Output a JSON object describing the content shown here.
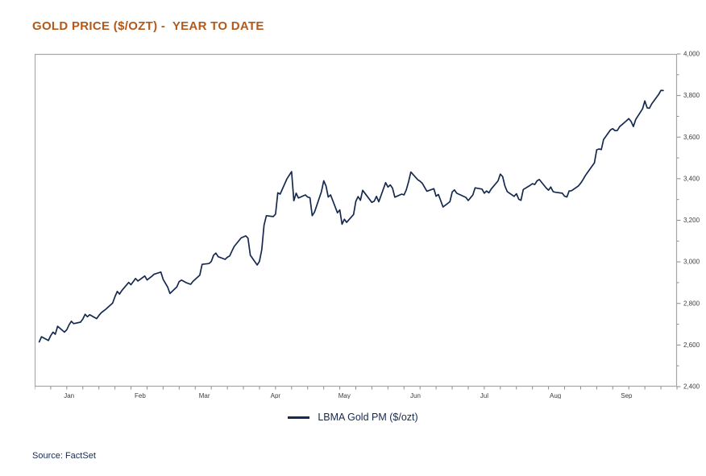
{
  "header": {
    "title": "GOLD PRICE ($/OZT) -  YEAR TO DATE"
  },
  "legend": {
    "label": "LBMA Gold PM ($/ozt)",
    "line_color": "#16294F"
  },
  "footer": {
    "source": "Source: FactSet"
  },
  "colors": {
    "title": "#B2591B",
    "line": "#16294F",
    "frame": "#A6A6A6",
    "tick": "#8A8A8A",
    "tick_label": "#3D3D3D",
    "navy_text": "#16294F",
    "background": "#FFFFFF"
  },
  "chart_data": {
    "type": "line",
    "title": "GOLD PRICE ($/OZT) - YEAR TO DATE",
    "xlabel": "",
    "ylabel": "",
    "grid": false,
    "axis_side": "right",
    "legend_position": "bottom-center",
    "x_unit": "day_of_year_2025",
    "x_domain": [
      0,
      280
    ],
    "y_domain": [
      2400,
      4000
    ],
    "y_minor_step": 100,
    "x_minor_tick_every_days": 7,
    "y_ticks_major": [
      {
        "value": 4000,
        "label": "4,000"
      },
      {
        "value": 3800,
        "label": "3,800"
      },
      {
        "value": 3600,
        "label": "3,600"
      },
      {
        "value": 3400,
        "label": "3,400"
      },
      {
        "value": 3200,
        "label": "3,200"
      },
      {
        "value": 3000,
        "label": "3,000"
      },
      {
        "value": 2800,
        "label": "2,800"
      },
      {
        "value": 2600,
        "label": "2,600"
      },
      {
        "value": 2400,
        "label": "2,400"
      }
    ],
    "x_month_labels": [
      {
        "label": "Jan",
        "day": 15
      },
      {
        "label": "Feb",
        "day": 46
      },
      {
        "label": "Mar",
        "day": 74
      },
      {
        "label": "Apr",
        "day": 105
      },
      {
        "label": "May",
        "day": 135
      },
      {
        "label": "Jun",
        "day": 166
      },
      {
        "label": "Jul",
        "day": 196
      },
      {
        "label": "Aug",
        "day": 227
      },
      {
        "label": "Sep",
        "day": 258
      }
    ],
    "series": [
      {
        "name": "LBMA Gold PM ($/ozt)",
        "color": "#16294F",
        "points": [
          [
            2,
            2615
          ],
          [
            3,
            2640
          ],
          [
            6,
            2622
          ],
          [
            7,
            2645
          ],
          [
            8,
            2662
          ],
          [
            9,
            2652
          ],
          [
            10,
            2690
          ],
          [
            13,
            2662
          ],
          [
            14,
            2674
          ],
          [
            15,
            2697
          ],
          [
            16,
            2714
          ],
          [
            17,
            2703
          ],
          [
            20,
            2710
          ],
          [
            21,
            2725
          ],
          [
            22,
            2748
          ],
          [
            23,
            2736
          ],
          [
            24,
            2746
          ],
          [
            27,
            2727
          ],
          [
            28,
            2742
          ],
          [
            29,
            2755
          ],
          [
            31,
            2772
          ],
          [
            34,
            2802
          ],
          [
            35,
            2832
          ],
          [
            36,
            2858
          ],
          [
            37,
            2845
          ],
          [
            38,
            2862
          ],
          [
            41,
            2901
          ],
          [
            42,
            2890
          ],
          [
            44,
            2920
          ],
          [
            45,
            2908
          ],
          [
            48,
            2932
          ],
          [
            49,
            2913
          ],
          [
            51,
            2930
          ],
          [
            52,
            2940
          ],
          [
            55,
            2951
          ],
          [
            56,
            2916
          ],
          [
            58,
            2878
          ],
          [
            59,
            2848
          ],
          [
            62,
            2880
          ],
          [
            63,
            2905
          ],
          [
            64,
            2912
          ],
          [
            66,
            2900
          ],
          [
            68,
            2892
          ],
          [
            69,
            2906
          ],
          [
            70,
            2916
          ],
          [
            72,
            2936
          ],
          [
            73,
            2988
          ],
          [
            76,
            2992
          ],
          [
            77,
            3002
          ],
          [
            78,
            3032
          ],
          [
            79,
            3042
          ],
          [
            80,
            3025
          ],
          [
            83,
            3012
          ],
          [
            84,
            3022
          ],
          [
            85,
            3028
          ],
          [
            86,
            3052
          ],
          [
            87,
            3074
          ],
          [
            90,
            3115
          ],
          [
            92,
            3125
          ],
          [
            93,
            3114
          ],
          [
            94,
            3032
          ],
          [
            97,
            2985
          ],
          [
            98,
            3002
          ],
          [
            99,
            3059
          ],
          [
            100,
            3176
          ],
          [
            101,
            3222
          ],
          [
            104,
            3218
          ],
          [
            105,
            3230
          ],
          [
            106,
            3332
          ],
          [
            107,
            3326
          ],
          [
            110,
            3400
          ],
          [
            112,
            3434
          ],
          [
            113,
            3294
          ],
          [
            114,
            3330
          ],
          [
            115,
            3307
          ],
          [
            118,
            3322
          ],
          [
            119,
            3312
          ],
          [
            120,
            3308
          ],
          [
            121,
            3222
          ],
          [
            122,
            3240
          ],
          [
            125,
            3337
          ],
          [
            126,
            3390
          ],
          [
            127,
            3365
          ],
          [
            128,
            3312
          ],
          [
            129,
            3322
          ],
          [
            132,
            3236
          ],
          [
            133,
            3250
          ],
          [
            134,
            3181
          ],
          [
            135,
            3205
          ],
          [
            136,
            3190
          ],
          [
            139,
            3228
          ],
          [
            140,
            3291
          ],
          [
            141,
            3314
          ],
          [
            142,
            3296
          ],
          [
            143,
            3344
          ],
          [
            147,
            3286
          ],
          [
            148,
            3292
          ],
          [
            149,
            3315
          ],
          [
            150,
            3289
          ],
          [
            153,
            3381
          ],
          [
            154,
            3360
          ],
          [
            155,
            3370
          ],
          [
            156,
            3355
          ],
          [
            157,
            3311
          ],
          [
            160,
            3326
          ],
          [
            161,
            3322
          ],
          [
            162,
            3346
          ],
          [
            163,
            3386
          ],
          [
            164,
            3432
          ],
          [
            167,
            3395
          ],
          [
            168,
            3388
          ],
          [
            169,
            3378
          ],
          [
            170,
            3358
          ],
          [
            171,
            3340
          ],
          [
            174,
            3352
          ],
          [
            175,
            3316
          ],
          [
            176,
            3324
          ],
          [
            177,
            3295
          ],
          [
            178,
            3264
          ],
          [
            181,
            3289
          ],
          [
            182,
            3336
          ],
          [
            183,
            3346
          ],
          [
            184,
            3330
          ],
          [
            188,
            3310
          ],
          [
            189,
            3295
          ],
          [
            190,
            3308
          ],
          [
            191,
            3322
          ],
          [
            192,
            3356
          ],
          [
            195,
            3350
          ],
          [
            196,
            3330
          ],
          [
            197,
            3341
          ],
          [
            198,
            3332
          ],
          [
            199,
            3350
          ],
          [
            202,
            3390
          ],
          [
            203,
            3422
          ],
          [
            204,
            3410
          ],
          [
            205,
            3365
          ],
          [
            206,
            3338
          ],
          [
            209,
            3315
          ],
          [
            210,
            3328
          ],
          [
            211,
            3302
          ],
          [
            212,
            3296
          ],
          [
            213,
            3348
          ],
          [
            216,
            3368
          ],
          [
            217,
            3376
          ],
          [
            218,
            3372
          ],
          [
            219,
            3390
          ],
          [
            220,
            3396
          ],
          [
            223,
            3355
          ],
          [
            224,
            3345
          ],
          [
            225,
            3360
          ],
          [
            226,
            3338
          ],
          [
            227,
            3335
          ],
          [
            230,
            3330
          ],
          [
            231,
            3316
          ],
          [
            232,
            3312
          ],
          [
            233,
            3341
          ],
          [
            234,
            3342
          ],
          [
            237,
            3365
          ],
          [
            238,
            3378
          ],
          [
            239,
            3395
          ],
          [
            240,
            3414
          ],
          [
            241,
            3430
          ],
          [
            244,
            3476
          ],
          [
            245,
            3539
          ],
          [
            246,
            3543
          ],
          [
            247,
            3540
          ],
          [
            248,
            3588
          ],
          [
            251,
            3635
          ],
          [
            252,
            3641
          ],
          [
            253,
            3631
          ],
          [
            254,
            3632
          ],
          [
            255,
            3650
          ],
          [
            258,
            3679
          ],
          [
            259,
            3689
          ],
          [
            260,
            3675
          ],
          [
            261,
            3651
          ],
          [
            262,
            3685
          ],
          [
            265,
            3736
          ],
          [
            266,
            3774
          ],
          [
            267,
            3741
          ],
          [
            268,
            3739
          ],
          [
            269,
            3760
          ],
          [
            272,
            3805
          ],
          [
            273,
            3825
          ],
          [
            274,
            3824
          ]
        ]
      }
    ]
  }
}
